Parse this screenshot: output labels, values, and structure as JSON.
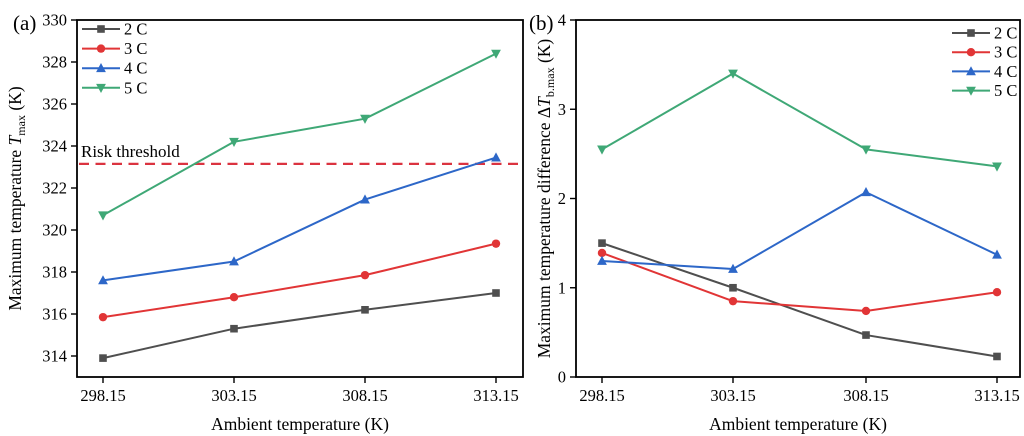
{
  "chart_data": [
    {
      "type": "line",
      "panel_label": "(a)",
      "xlabel": "Ambient temperature (K)",
      "ylabel": "Maximum temperature T_max (K)",
      "ylabel_rich": [
        {
          "t": "Maximum temperature "
        },
        {
          "t": "T",
          "italic": true
        },
        {
          "t": "max",
          "sub": true
        },
        {
          "t": " (K)"
        }
      ],
      "categories": [
        "298.15",
        "303.15",
        "308.15",
        "313.15"
      ],
      "series": [
        {
          "name": "2 C",
          "marker": "square",
          "color": "#4f4f4f",
          "values": [
            313.9,
            315.3,
            316.2,
            317.0
          ]
        },
        {
          "name": "3 C",
          "marker": "circle",
          "color": "#e13536",
          "values": [
            315.85,
            316.8,
            317.85,
            319.35
          ]
        },
        {
          "name": "4 C",
          "marker": "triangle-up",
          "color": "#2d67c8",
          "values": [
            317.6,
            318.5,
            321.45,
            323.45
          ]
        },
        {
          "name": "5 C",
          "marker": "triangle-down",
          "color": "#3fa876",
          "values": [
            320.7,
            324.2,
            325.3,
            328.4
          ]
        }
      ],
      "ylim": [
        313,
        330
      ],
      "yticks": [
        314,
        316,
        318,
        320,
        322,
        324,
        326,
        328,
        330
      ],
      "grid": false,
      "legend_position": "top-left",
      "annotation": {
        "label": "Risk threshold",
        "value": 323.15,
        "color": "#db3340",
        "line_style": "dashed"
      }
    },
    {
      "type": "line",
      "panel_label": "(b)",
      "xlabel": "Ambient temperature (K)",
      "ylabel": "Maximum temperature difference ΔT_b.max (K)",
      "ylabel_rich": [
        {
          "t": "Maximum temperature difference Δ"
        },
        {
          "t": "T",
          "italic": true
        },
        {
          "t": "b.max",
          "sub": true
        },
        {
          "t": " (K)"
        }
      ],
      "categories": [
        "298.15",
        "303.15",
        "308.15",
        "313.15"
      ],
      "series": [
        {
          "name": "2 C",
          "marker": "square",
          "color": "#4f4f4f",
          "values": [
            1.5,
            1.0,
            0.47,
            0.23
          ]
        },
        {
          "name": "3 C",
          "marker": "circle",
          "color": "#e13536",
          "values": [
            1.39,
            0.85,
            0.74,
            0.95
          ]
        },
        {
          "name": "4 C",
          "marker": "triangle-up",
          "color": "#2d67c8",
          "values": [
            1.3,
            1.21,
            2.07,
            1.37
          ]
        },
        {
          "name": "5 C",
          "marker": "triangle-down",
          "color": "#3fa876",
          "values": [
            2.55,
            3.4,
            2.55,
            2.36
          ]
        }
      ],
      "ylim": [
        0,
        4
      ],
      "yticks": [
        0,
        1,
        2,
        3,
        4
      ],
      "grid": false,
      "legend_position": "top-right"
    }
  ]
}
